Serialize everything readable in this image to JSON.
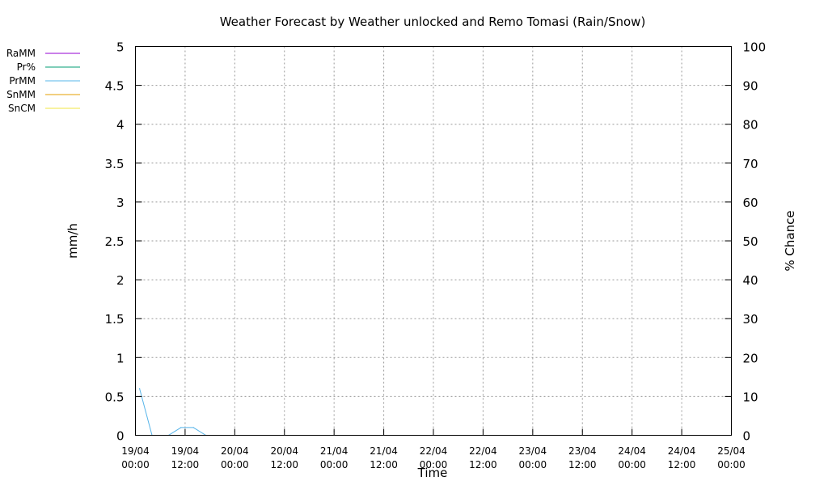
{
  "chart_data": {
    "type": "line",
    "title": "Weather Forecast by Weather unlocked and Remo Tomasi (Rain/Snow)",
    "xlabel": "Time",
    "ylabel": "mm/h",
    "y2label": "% Chance",
    "ylim": [
      0,
      5
    ],
    "y2lim": [
      0,
      100
    ],
    "yticks": [
      "0",
      "0.5",
      "1",
      "1.5",
      "2",
      "2.5",
      "3",
      "3.5",
      "4",
      "4.5",
      "5"
    ],
    "y2ticks": [
      "0",
      "10",
      "20",
      "30",
      "40",
      "50",
      "60",
      "70",
      "80",
      "90",
      "100"
    ],
    "xlim": [
      "19/04 00:00",
      "25/04 00:00"
    ],
    "xticks": [
      {
        "date": "19/04",
        "time": "00:00"
      },
      {
        "date": "19/04",
        "time": "12:00"
      },
      {
        "date": "20/04",
        "time": "00:00"
      },
      {
        "date": "20/04",
        "time": "12:00"
      },
      {
        "date": "21/04",
        "time": "00:00"
      },
      {
        "date": "21/04",
        "time": "12:00"
      },
      {
        "date": "22/04",
        "time": "00:00"
      },
      {
        "date": "22/04",
        "time": "12:00"
      },
      {
        "date": "23/04",
        "time": "00:00"
      },
      {
        "date": "23/04",
        "time": "12:00"
      },
      {
        "date": "24/04",
        "time": "00:00"
      },
      {
        "date": "24/04",
        "time": "12:00"
      },
      {
        "date": "25/04",
        "time": "00:00"
      }
    ],
    "grid": true,
    "legend_position": "top-left",
    "series": [
      {
        "name": "RaMM",
        "color": "#9400d3",
        "axis": "left",
        "points": []
      },
      {
        "name": "Pr%",
        "color": "#009e73",
        "axis": "right",
        "points": []
      },
      {
        "name": "PrMM",
        "color": "#56b4e9",
        "axis": "left",
        "points": [
          {
            "x": "19/04 01:00",
            "y": 0.6
          },
          {
            "x": "19/04 04:00",
            "y": 0.0
          },
          {
            "x": "19/04 08:00",
            "y": 0.0
          },
          {
            "x": "19/04 11:00",
            "y": 0.1
          },
          {
            "x": "19/04 14:00",
            "y": 0.1
          },
          {
            "x": "19/04 17:00",
            "y": 0.0
          }
        ]
      },
      {
        "name": "SnMM",
        "color": "#e69f00",
        "axis": "left",
        "points": []
      },
      {
        "name": "SnCM",
        "color": "#f0e442",
        "axis": "left",
        "points": []
      }
    ]
  }
}
